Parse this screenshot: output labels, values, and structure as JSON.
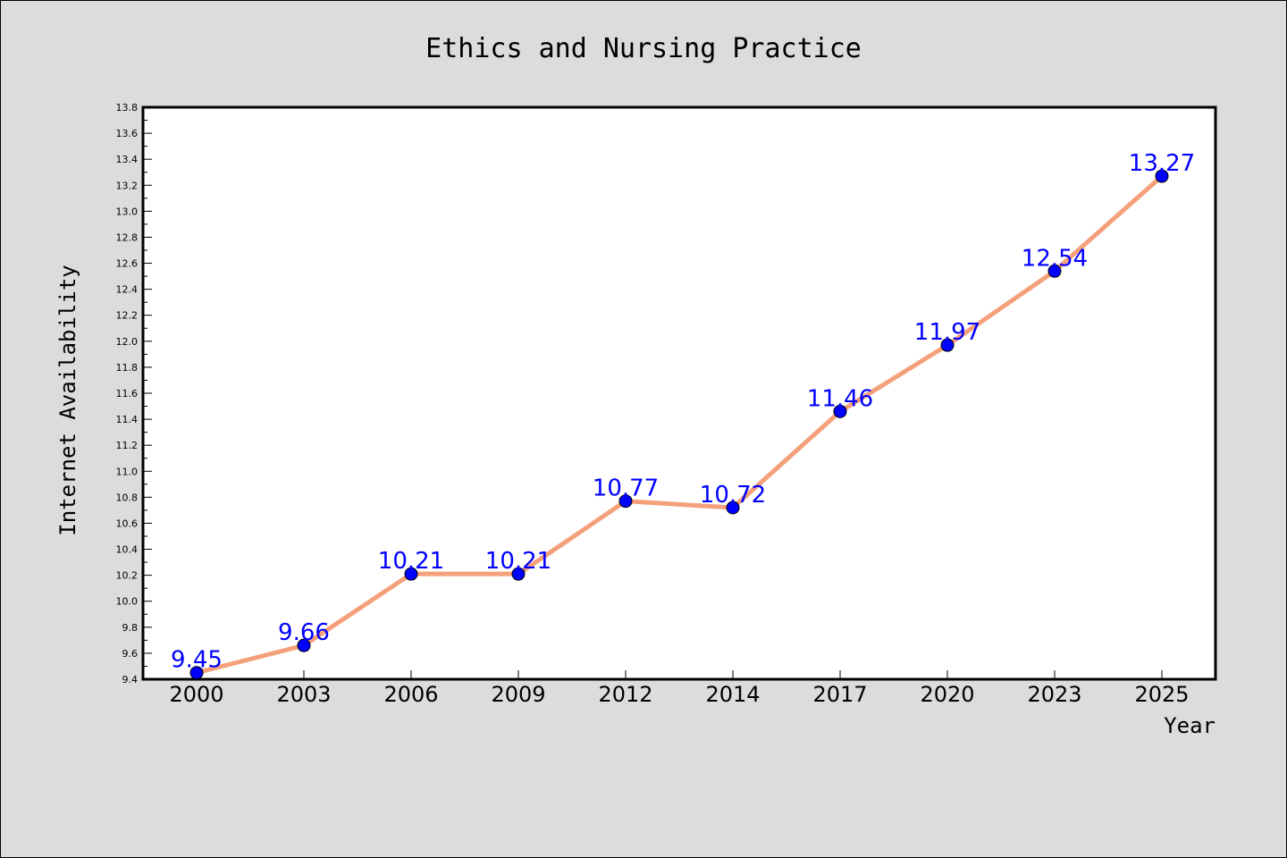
{
  "chart_data": {
    "type": "line",
    "title": "Ethics and Nursing Practice",
    "xlabel": "Year",
    "ylabel": "Internet Availability",
    "categories": [
      "2000",
      "2003",
      "2006",
      "2009",
      "2012",
      "2014",
      "2017",
      "2020",
      "2023",
      "2025"
    ],
    "series": [
      {
        "values": [
          9.45,
          9.66,
          10.21,
          10.21,
          10.77,
          10.72,
          11.46,
          11.97,
          12.54,
          13.27
        ],
        "line_color": "#f4a07a",
        "marker_color": "#0000ff"
      }
    ],
    "data_labels": [
      "9.45",
      "9.66",
      "10.21",
      "10.21",
      "10.77",
      "10.72",
      "11.46",
      "11.97",
      "12.54",
      "13.27"
    ],
    "ylim": [
      9.4,
      13.8
    ],
    "yticks": [
      "9.4",
      "9.6",
      "9.8",
      "10.0",
      "10.2",
      "10.4",
      "10.6",
      "10.8",
      "11.0",
      "11.2",
      "11.4",
      "11.6",
      "11.8",
      "12.0",
      "12.2",
      "12.4",
      "12.6",
      "12.8",
      "13.0",
      "13.2",
      "13.4",
      "13.6",
      "13.8"
    ],
    "grid": false,
    "label_color": "#0000ff"
  }
}
